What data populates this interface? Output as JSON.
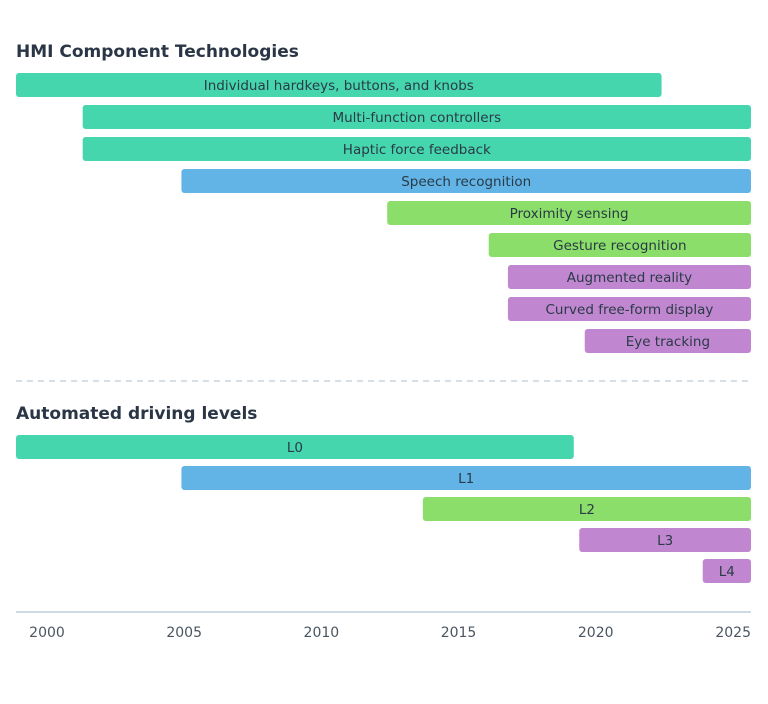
{
  "chart_data": {
    "type": "gantt",
    "xlim": [
      1998.87,
      2025.66
    ],
    "x_ticks": [
      "2000",
      "2005",
      "2010",
      "2015",
      "2020",
      "2025"
    ],
    "x_tick_values": [
      2000,
      2005,
      2010,
      2015,
      2020,
      2025
    ],
    "colors": {
      "teal": "#45d6ae",
      "blue": "#62b4e6",
      "green": "#8ade69",
      "purple": "#c087d0"
    },
    "panels": [
      {
        "title": "HMI Component Technologies",
        "bars": [
          {
            "label": "Individual hardkeys, buttons, and knobs",
            "start": 1998.87,
            "end": 2022.4,
            "color": "teal"
          },
          {
            "label": "Multi-function controllers",
            "start": 2001.3,
            "end": 2025.66,
            "color": "teal"
          },
          {
            "label": "Haptic force feedback",
            "start": 2001.3,
            "end": 2025.66,
            "color": "teal"
          },
          {
            "label": "Speech recognition",
            "start": 2004.9,
            "end": 2025.66,
            "color": "blue"
          },
          {
            "label": "Proximity sensing",
            "start": 2012.4,
            "end": 2025.66,
            "color": "green"
          },
          {
            "label": "Gesture recognition",
            "start": 2016.1,
            "end": 2025.66,
            "color": "green"
          },
          {
            "label": "Augmented reality",
            "start": 2016.8,
            "end": 2025.66,
            "color": "purple"
          },
          {
            "label": "Curved free-form display",
            "start": 2016.8,
            "end": 2025.66,
            "color": "purple"
          },
          {
            "label": "Eye tracking",
            "start": 2019.6,
            "end": 2025.66,
            "color": "purple"
          }
        ]
      },
      {
        "title": "Automated driving levels",
        "bars": [
          {
            "label": "L0",
            "start": 1998.87,
            "end": 2019.2,
            "color": "teal"
          },
          {
            "label": "L1",
            "start": 2004.9,
            "end": 2025.66,
            "color": "blue"
          },
          {
            "label": "L2",
            "start": 2013.7,
            "end": 2025.66,
            "color": "green"
          },
          {
            "label": "L3",
            "start": 2019.4,
            "end": 2025.66,
            "color": "purple"
          },
          {
            "label": "L4",
            "start": 2023.9,
            "end": 2025.66,
            "color": "purple"
          }
        ]
      }
    ]
  }
}
